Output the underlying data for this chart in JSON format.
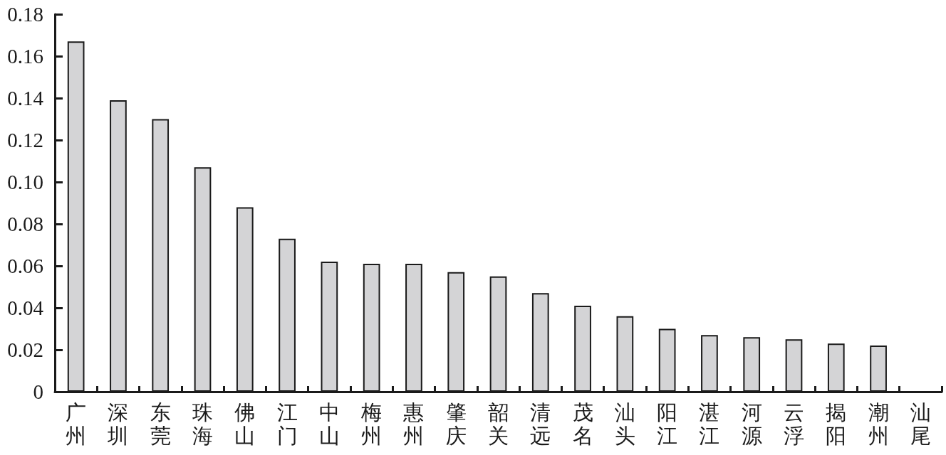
{
  "chart_data": {
    "type": "bar",
    "categories": [
      "广州",
      "深圳",
      "东莞",
      "珠海",
      "佛山",
      "江门",
      "中山",
      "梅州",
      "惠州",
      "肇庆",
      "韶关",
      "清远",
      "茂名",
      "汕头",
      "阳江",
      "湛江",
      "河源",
      "云浮",
      "揭阳",
      "潮州",
      "汕尾"
    ],
    "values": [
      0.167,
      0.139,
      0.13,
      0.107,
      0.088,
      0.073,
      0.062,
      0.061,
      0.061,
      0.057,
      0.055,
      0.047,
      0.041,
      0.036,
      0.03,
      0.027,
      0.026,
      0.025,
      0.023,
      0.022,
      null
    ],
    "color": "#d4d4d6",
    "ylim": [
      0,
      0.18
    ],
    "yticks": [
      0,
      0.02,
      0.04,
      0.06,
      0.08,
      {
        "value": 0.1,
        "label": "0.10"
      },
      0.12,
      0.14,
      0.16,
      0.18
    ],
    "grid": false
  }
}
